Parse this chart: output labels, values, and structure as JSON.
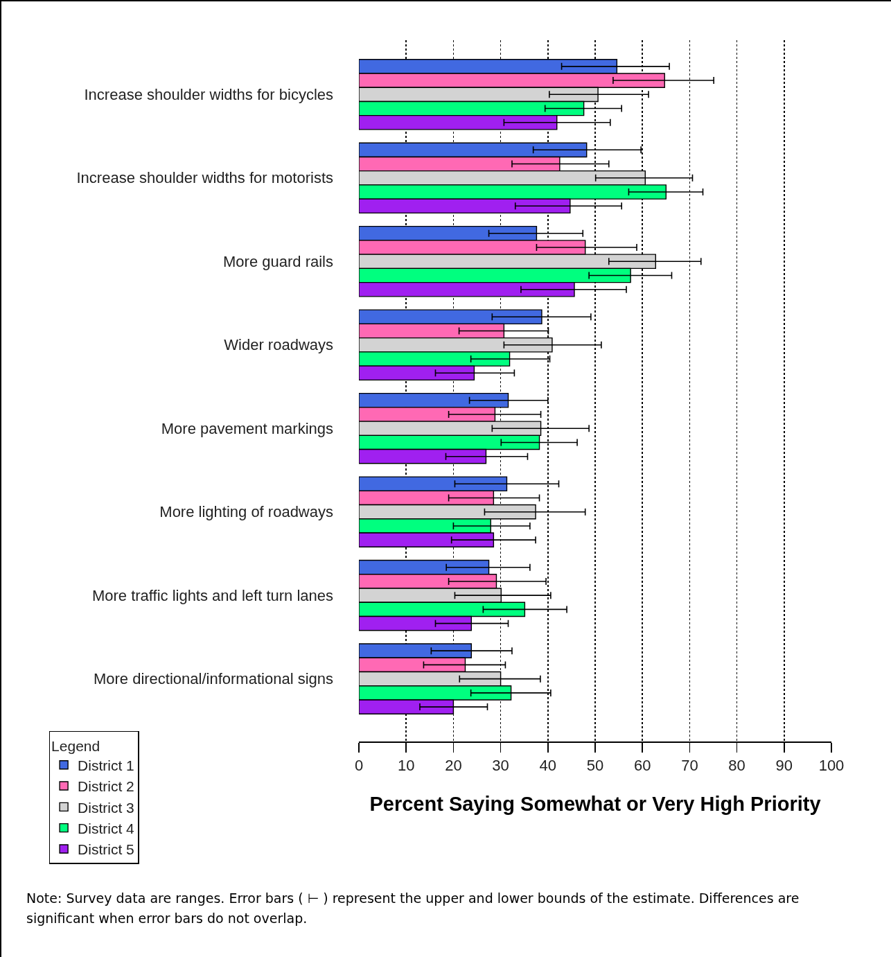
{
  "chart_data": {
    "type": "bar",
    "orientation": "horizontal",
    "xlabel": "Percent Saying Somewhat or Very High Priority",
    "legend_title": "Legend",
    "legend": "bottom left",
    "grid": "x",
    "categories": [
      "Increase shoulder widths for bicycles",
      "Increase shoulder widths for motorists",
      "More guard rails",
      "Wider roadways",
      "More pavement markings",
      "More lighting of roadways",
      "More traffic lights and left turn lanes",
      "More directional/informational signs"
    ],
    "xlim": [
      0,
      100
    ],
    "xticks": [
      0,
      10,
      20,
      30,
      40,
      50,
      60,
      70,
      80,
      90,
      100
    ],
    "series": [
      {
        "name": "District 1",
        "color": "#4169e1",
        "values": [
          54.6,
          48.2,
          37.6,
          38.7,
          31.6,
          31.3,
          27.5,
          23.8
        ],
        "errors": [
          [
            42.9,
            65.7
          ],
          [
            36.9,
            59.7
          ],
          [
            27.5,
            47.4
          ],
          [
            28.2,
            49.1
          ],
          [
            23.4,
            40
          ],
          [
            20.3,
            42.3
          ],
          [
            18.5,
            36.2
          ],
          [
            15.3,
            32.4
          ]
        ]
      },
      {
        "name": "District 2",
        "color": "#ff69b4",
        "values": [
          64.7,
          42.5,
          47.9,
          30.7,
          28.8,
          28.5,
          29.1,
          22.5
        ],
        "errors": [
          [
            53.8,
            75.1
          ],
          [
            32.4,
            52.9
          ],
          [
            37.6,
            58.8
          ],
          [
            21.2,
            40.1
          ],
          [
            19,
            38.5
          ],
          [
            19,
            38.2
          ],
          [
            19,
            39.6
          ],
          [
            13.7,
            31
          ]
        ]
      },
      {
        "name": "District 3",
        "color": "#d3d3d3",
        "values": [
          50.6,
          60.6,
          62.8,
          40.9,
          38.5,
          37.4,
          30.1,
          30
        ],
        "errors": [
          [
            40.3,
            61.3
          ],
          [
            50.1,
            70.6
          ],
          [
            52.9,
            72.4
          ],
          [
            30.7,
            51.3
          ],
          [
            28.2,
            48.7
          ],
          [
            26.6,
            47.9
          ],
          [
            20.3,
            40.6
          ],
          [
            21.3,
            38.4
          ]
        ]
      },
      {
        "name": "District 4",
        "color": "#00ff7f",
        "values": [
          47.6,
          65,
          57.5,
          31.9,
          38.2,
          27.9,
          35.1,
          32.2
        ],
        "errors": [
          [
            39.4,
            55.6
          ],
          [
            57.1,
            72.8
          ],
          [
            48.7,
            66.2
          ],
          [
            23.7,
            40.4
          ],
          [
            30.1,
            46.2
          ],
          [
            20,
            36.2
          ],
          [
            26.3,
            44
          ],
          [
            23.7,
            40.6
          ]
        ]
      },
      {
        "name": "District 5",
        "color": "#a020f0",
        "values": [
          41.9,
          44.7,
          45.6,
          24.4,
          26.9,
          28.5,
          23.8,
          20
        ],
        "errors": [
          [
            30.7,
            53.2
          ],
          [
            33.1,
            55.6
          ],
          [
            34.3,
            56.6
          ],
          [
            16.2,
            32.9
          ],
          [
            18.4,
            35.7
          ],
          [
            19.6,
            37.4
          ],
          [
            16.2,
            31.6
          ],
          [
            12.9,
            27.2
          ]
        ]
      }
    ],
    "annotations": [
      "Note:  Survey data are ranges.  Error bars ( ⊢ ) represent the upper and lower bounds of the estimate. Differences are significant when error bars do not overlap."
    ]
  }
}
